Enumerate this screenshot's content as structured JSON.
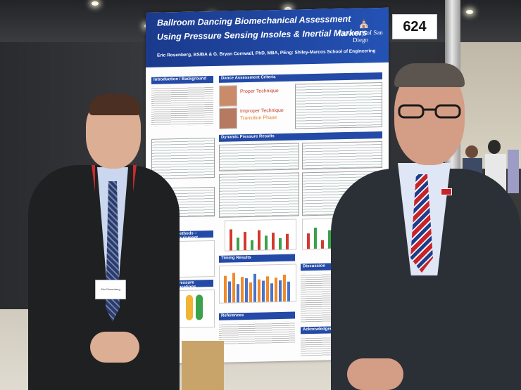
{
  "scene": {
    "description_tags": [
      "conference",
      "poster",
      "two-people"
    ],
    "booth_number": "624"
  },
  "poster": {
    "title_line1": "Ballroom Dancing Biomechanical Assessment",
    "title_line2": "Using Pressure Sensing Insoles & Inertial Markers",
    "authors": "Eric Rosenberg, BS/BA & G. Bryan Cornwall, PhD, MBA, PEng: Shiley-Marcos School of Engineering",
    "logo": "University of San Diego",
    "sections": {
      "intro": "Introduction / Background",
      "criteria": "Dance Assessment Criteria",
      "dynamic": "Dynamic Pressure Results",
      "methods": "Methods – Equipment",
      "timing": "Timing Results",
      "locations": "Pressure Locations",
      "discussion": "Discussion",
      "references": "References",
      "acknowledgements": "Acknowledgements"
    },
    "legend": {
      "proper": "Proper Technique",
      "improper": "Improper Technique",
      "transition": "Transition Phase"
    }
  },
  "colors": {
    "poster_blue": "#234aa6",
    "bar_red": "#d23a2e",
    "bar_green": "#3aa24a",
    "bar_orange": "#f08a2a",
    "bar_blue": "#4a73c9"
  },
  "badge": {
    "name": "Eric Rosenberg"
  }
}
